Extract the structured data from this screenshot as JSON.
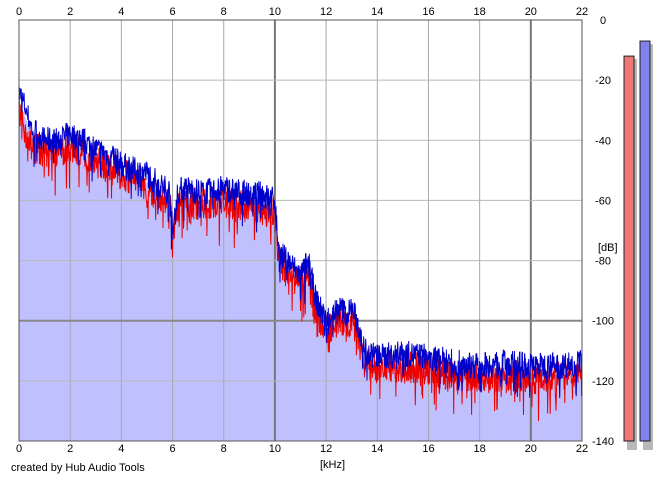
{
  "chart_data": {
    "type": "area",
    "xlabel": "[kHz]",
    "ylabel": "[dB]",
    "xlim": [
      0,
      22
    ],
    "ylim": [
      -140,
      0
    ],
    "x_ticks": [
      0,
      2,
      4,
      6,
      8,
      10,
      12,
      14,
      16,
      18,
      20,
      22
    ],
    "y_ticks": [
      0,
      -20,
      -40,
      -60,
      -80,
      -100,
      -120,
      -140
    ],
    "grid": true,
    "series": [
      {
        "color": "#0000cc",
        "fill": "#c0c0ff",
        "x": [
          0,
          0.2,
          0.5,
          1.0,
          1.5,
          2.0,
          2.5,
          3.0,
          3.5,
          4.0,
          4.5,
          5.0,
          5.5,
          5.9,
          6.0,
          6.2,
          6.5,
          7.0,
          7.5,
          8.0,
          8.5,
          9.0,
          9.5,
          10.0,
          10.1,
          10.2,
          10.5,
          10.8,
          11.0,
          11.3,
          11.6,
          12.0,
          12.3,
          12.6,
          12.8,
          13.0,
          13.2,
          13.5,
          14.0,
          15.0,
          16.0,
          17.0,
          18.0,
          19.0,
          20.0,
          21.0,
          22.0
        ],
        "values": [
          -24,
          -28,
          -36,
          -40,
          -40,
          -38,
          -40,
          -43,
          -45,
          -48,
          -50,
          -51,
          -55,
          -57,
          -72,
          -57,
          -56,
          -57,
          -57,
          -56,
          -57,
          -58,
          -58,
          -60,
          -72,
          -78,
          -80,
          -83,
          -85,
          -80,
          -93,
          -100,
          -97,
          -96,
          -98,
          -96,
          -100,
          -110,
          -112,
          -111,
          -112,
          -114,
          -115,
          -114,
          -115,
          -115,
          -114
        ]
      },
      {
        "color": "#ee0000",
        "x": [
          0,
          0.2,
          0.5,
          1.0,
          1.5,
          2.0,
          2.5,
          3.0,
          3.5,
          4.0,
          4.5,
          5.0,
          5.5,
          5.9,
          6.0,
          6.2,
          6.5,
          7.0,
          7.5,
          8.0,
          8.5,
          9.0,
          9.5,
          10.0,
          10.1,
          10.2,
          10.5,
          10.8,
          11.0,
          11.3,
          11.6,
          12.0,
          12.3,
          12.6,
          12.8,
          13.0,
          13.2,
          13.5,
          14.0,
          15.0,
          16.0,
          17.0,
          18.0,
          19.0,
          20.0,
          21.0,
          22.0
        ],
        "values": [
          -32,
          -36,
          -42,
          -44,
          -44,
          -42,
          -44,
          -47,
          -49,
          -51,
          -53,
          -55,
          -58,
          -61,
          -74,
          -62,
          -61,
          -61,
          -61,
          -60,
          -62,
          -62,
          -63,
          -64,
          -75,
          -80,
          -83,
          -86,
          -88,
          -85,
          -96,
          -104,
          -101,
          -100,
          -102,
          -100,
          -104,
          -114,
          -116,
          -115,
          -116,
          -118,
          -119,
          -118,
          -119,
          -119,
          -117
        ]
      }
    ],
    "level_meters": [
      {
        "color": "#ee7878",
        "value": -12
      },
      {
        "color": "#8080ee",
        "value": -7
      }
    ]
  },
  "footer": {
    "credit": "created by Hub Audio Tools"
  }
}
